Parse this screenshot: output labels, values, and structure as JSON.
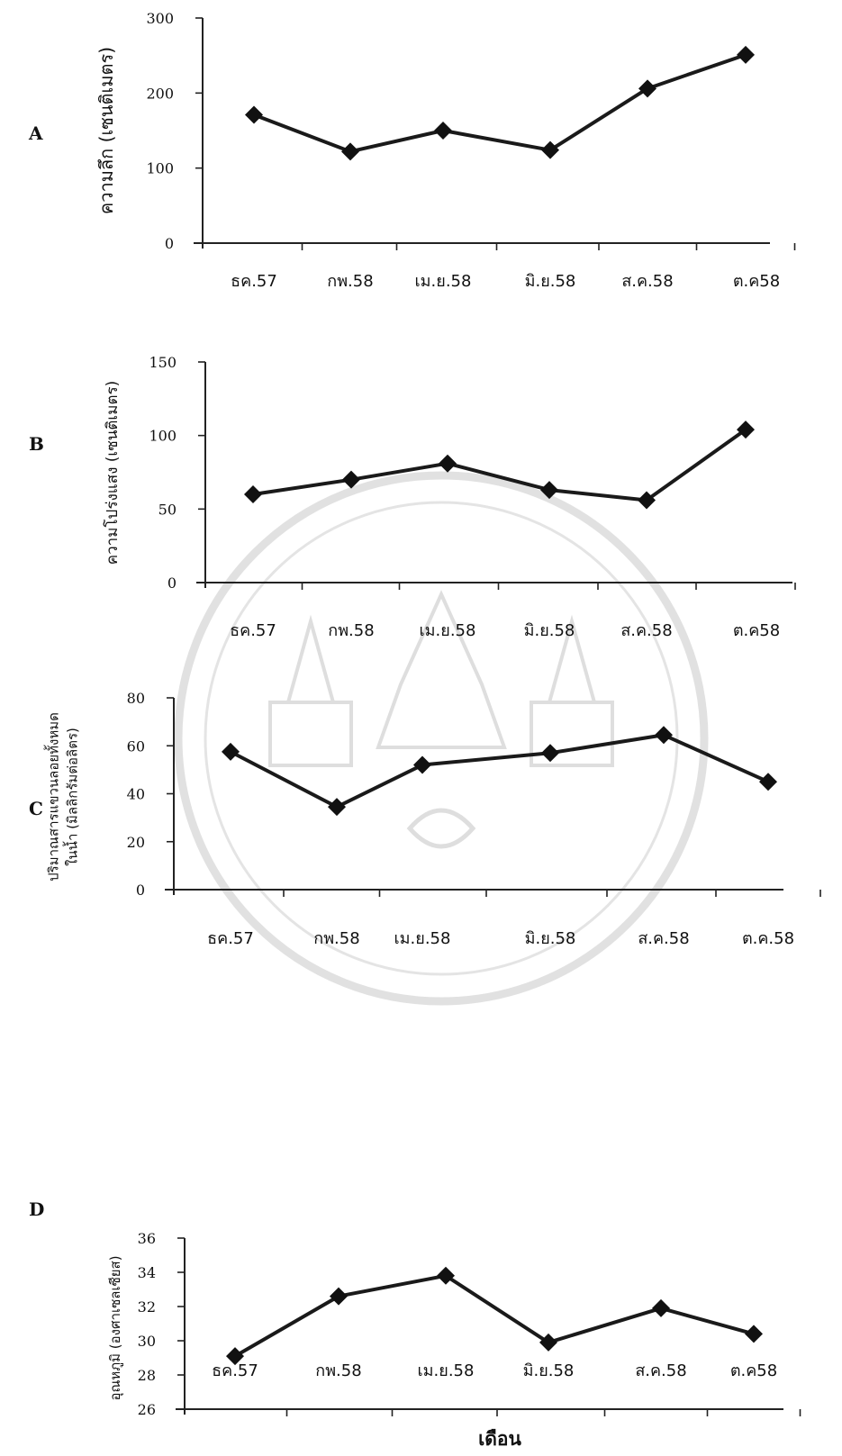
{
  "chart_data": [
    {
      "panel": "A",
      "type": "line",
      "categories": [
        "ธค.57",
        "กพ.58",
        "เม.ย.58",
        "มิ.ย.58",
        "ส.ค.58",
        "ต.ค58"
      ],
      "values": [
        171,
        122,
        150,
        124,
        206,
        251
      ],
      "ylabel": "ความลึก (เซนติเมตร)",
      "xlabel": "",
      "ylim": [
        0,
        300
      ],
      "yticks": [
        "0",
        "100",
        "200",
        "300"
      ],
      "marker": "diamond",
      "grid": false
    },
    {
      "panel": "B",
      "type": "line",
      "categories": [
        "ธค.57",
        "กพ.58",
        "เม.ย.58",
        "มิ.ย.58",
        "ส.ค.58",
        "ต.ค58"
      ],
      "values": [
        60,
        70,
        81,
        63,
        56,
        104
      ],
      "ylabel": "ความโปร่งแสง (เซนติเมตร)",
      "xlabel": "",
      "ylim": [
        0,
        150
      ],
      "yticks": [
        "0",
        "50",
        "100",
        "150"
      ],
      "marker": "diamond",
      "grid": false
    },
    {
      "panel": "C",
      "type": "line",
      "categories": [
        "ธค.57",
        "กพ.58",
        "เม.ย.58",
        "มิ.ย.58",
        "ส.ค.58",
        "ต.ค.58"
      ],
      "values": [
        57.5,
        34.5,
        52,
        57,
        64.5,
        45
      ],
      "ylabel_lines": [
        "ปริมาณสารแขวนลอยทั้งหมด",
        "ในน้ำ (มิลลิกรัมต่อลิตร)"
      ],
      "xlabel": "",
      "ylim": [
        0,
        80
      ],
      "yticks": [
        "0",
        "20",
        "40",
        "60",
        "80"
      ],
      "marker": "diamond",
      "grid": false
    },
    {
      "panel": "D",
      "type": "line",
      "categories": [
        "ธค.57",
        "กพ.58",
        "เม.ย.58",
        "มิ.ย.58",
        "ส.ค.58",
        "ต.ค58"
      ],
      "values": [
        29.1,
        32.6,
        33.8,
        29.9,
        31.9,
        30.4
      ],
      "ylabel": "อุณหภูมิ (องศาเซลเซียส)",
      "xlabel": "เดือน",
      "ylim": [
        26,
        36
      ],
      "yticks": [
        "26",
        "28",
        "30",
        "32",
        "34",
        "36"
      ],
      "marker": "diamond",
      "grid": false
    }
  ],
  "colors": {
    "line": "#1a1a1a",
    "marker": "#111111",
    "watermark": "#c9c9c9"
  }
}
